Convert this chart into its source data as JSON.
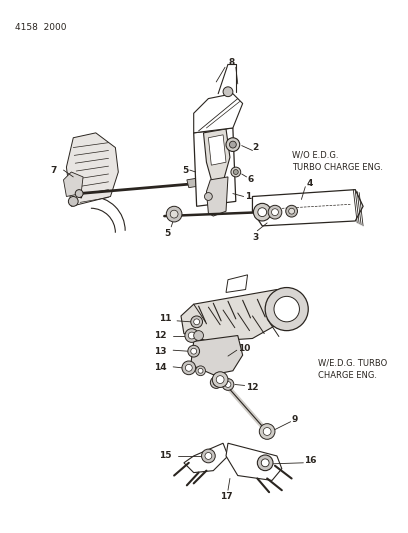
{
  "background_color": "#ffffff",
  "title_code": "4158  2000",
  "diagram1_label": "W/O E.D.G.\nTURBO CHARGE ENG.",
  "diagram2_label": "W/E.D.G. TURBO\nCHARGE ENG.",
  "line_color": "#2a2520",
  "label_color": "#2a2520",
  "fig_w": 4.08,
  "fig_h": 5.33,
  "dpi": 100
}
